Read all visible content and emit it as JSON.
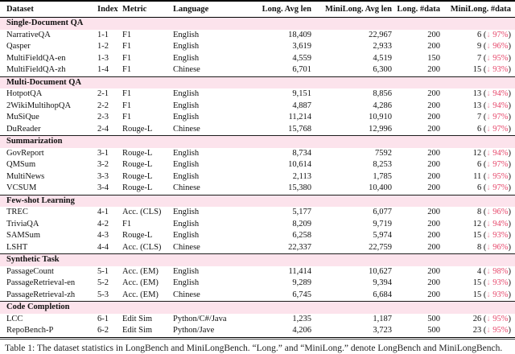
{
  "table": {
    "columns": [
      {
        "label": "Dataset",
        "align": "left"
      },
      {
        "label": "Index",
        "align": "left"
      },
      {
        "label": "Metric",
        "align": "left"
      },
      {
        "label": "Language",
        "align": "left"
      },
      {
        "label": "Long. Avg len",
        "align": "right"
      },
      {
        "label": "MiniLong. Avg len",
        "align": "right"
      },
      {
        "label": "Long. #data",
        "align": "right"
      },
      {
        "label": "MiniLong. #data",
        "align": "right"
      }
    ],
    "sections": [
      {
        "title": "Single-Document QA",
        "rows": [
          {
            "dataset": "NarrativeQA",
            "index": "1-1",
            "metric": "F1",
            "language": "English",
            "long_avg_len": "18,409",
            "minilong_avg_len": "22,967",
            "long_data": "200",
            "minilong_count": "6",
            "minilong_drop": "97%"
          },
          {
            "dataset": "Qasper",
            "index": "1-2",
            "metric": "F1",
            "language": "English",
            "long_avg_len": "3,619",
            "minilong_avg_len": "2,933",
            "long_data": "200",
            "minilong_count": "9",
            "minilong_drop": "96%"
          },
          {
            "dataset": "MultiFieldQA-en",
            "index": "1-3",
            "metric": "F1",
            "language": "English",
            "long_avg_len": "4,559",
            "minilong_avg_len": "4,519",
            "long_data": "150",
            "minilong_count": "7",
            "minilong_drop": "95%"
          },
          {
            "dataset": "MultiFieldQA-zh",
            "index": "1-4",
            "metric": "F1",
            "language": "Chinese",
            "long_avg_len": "6,701",
            "minilong_avg_len": "6,300",
            "long_data": "200",
            "minilong_count": "15",
            "minilong_drop": "93%"
          }
        ]
      },
      {
        "title": "Multi-Document QA",
        "rows": [
          {
            "dataset": "HotpotQA",
            "index": "2-1",
            "metric": "F1",
            "language": "English",
            "long_avg_len": "9,151",
            "minilong_avg_len": "8,856",
            "long_data": "200",
            "minilong_count": "13",
            "minilong_drop": "94%"
          },
          {
            "dataset": "2WikiMultihopQA",
            "index": "2-2",
            "metric": "F1",
            "language": "English",
            "long_avg_len": "4,887",
            "minilong_avg_len": "4,286",
            "long_data": "200",
            "minilong_count": "13",
            "minilong_drop": "94%"
          },
          {
            "dataset": "MuSiQue",
            "index": "2-3",
            "metric": "F1",
            "language": "English",
            "long_avg_len": "11,214",
            "minilong_avg_len": "10,910",
            "long_data": "200",
            "minilong_count": "7",
            "minilong_drop": "97%"
          },
          {
            "dataset": "DuReader",
            "index": "2-4",
            "metric": "Rouge-L",
            "language": "Chinese",
            "long_avg_len": "15,768",
            "minilong_avg_len": "12,996",
            "long_data": "200",
            "minilong_count": "6",
            "minilong_drop": "97%"
          }
        ]
      },
      {
        "title": "Summarization",
        "rows": [
          {
            "dataset": "GovReport",
            "index": "3-1",
            "metric": "Rouge-L",
            "language": "English",
            "long_avg_len": "8,734",
            "minilong_avg_len": "7592",
            "long_data": "200",
            "minilong_count": "12",
            "minilong_drop": "94%"
          },
          {
            "dataset": "QMSum",
            "index": "3-2",
            "metric": "Rouge-L",
            "language": "English",
            "long_avg_len": "10,614",
            "minilong_avg_len": "8,253",
            "long_data": "200",
            "minilong_count": "6",
            "minilong_drop": "97%"
          },
          {
            "dataset": "MultiNews",
            "index": "3-3",
            "metric": "Rouge-L",
            "language": "English",
            "long_avg_len": "2,113",
            "minilong_avg_len": "1,785",
            "long_data": "200",
            "minilong_count": "11",
            "minilong_drop": "95%"
          },
          {
            "dataset": "VCSUM",
            "index": "3-4",
            "metric": "Rouge-L",
            "language": "Chinese",
            "long_avg_len": "15,380",
            "minilong_avg_len": "10,400",
            "long_data": "200",
            "minilong_count": "6",
            "minilong_drop": "97%"
          }
        ]
      },
      {
        "title": "Few-shot Learning",
        "rows": [
          {
            "dataset": "TREC",
            "index": "4-1",
            "metric": "Acc. (CLS)",
            "language": "English",
            "long_avg_len": "5,177",
            "minilong_avg_len": "6,077",
            "long_data": "200",
            "minilong_count": "8",
            "minilong_drop": "96%"
          },
          {
            "dataset": "TriviaQA",
            "index": "4-2",
            "metric": "F1",
            "language": "English",
            "long_avg_len": "8,209",
            "minilong_avg_len": "9,719",
            "long_data": "200",
            "minilong_count": "12",
            "minilong_drop": "94%"
          },
          {
            "dataset": "SAMSum",
            "index": "4-3",
            "metric": "Rouge-L",
            "language": "English",
            "long_avg_len": "6,258",
            "minilong_avg_len": "5,974",
            "long_data": "200",
            "minilong_count": "15",
            "minilong_drop": "93%"
          },
          {
            "dataset": "LSHT",
            "index": "4-4",
            "metric": "Acc. (CLS)",
            "language": "Chinese",
            "long_avg_len": "22,337",
            "minilong_avg_len": "22,759",
            "long_data": "200",
            "minilong_count": "8",
            "minilong_drop": "96%"
          }
        ]
      },
      {
        "title": "Synthetic Task",
        "rows": [
          {
            "dataset": "PassageCount",
            "index": "5-1",
            "metric": "Acc. (EM)",
            "language": "English",
            "long_avg_len": "11,414",
            "minilong_avg_len": "10,627",
            "long_data": "200",
            "minilong_count": "4",
            "minilong_drop": "98%"
          },
          {
            "dataset": "PassageRetrieval-en",
            "index": "5-2",
            "metric": "Acc. (EM)",
            "language": "English",
            "long_avg_len": "9,289",
            "minilong_avg_len": "9,394",
            "long_data": "200",
            "minilong_count": "15",
            "minilong_drop": "93%"
          },
          {
            "dataset": "PassageRetrieval-zh",
            "index": "5-3",
            "metric": "Acc. (EM)",
            "language": "Chinese",
            "long_avg_len": "6,745",
            "minilong_avg_len": "6,684",
            "long_data": "200",
            "minilong_count": "15",
            "minilong_drop": "93%"
          }
        ]
      },
      {
        "title": "Code Completion",
        "rows": [
          {
            "dataset": "LCC",
            "index": "6-1",
            "metric": "Edit Sim",
            "language": "Python/C#/Java",
            "long_avg_len": "1,235",
            "minilong_avg_len": "1,187",
            "long_data": "500",
            "minilong_count": "26",
            "minilong_drop": "95%"
          },
          {
            "dataset": "RepoBench-P",
            "index": "6-2",
            "metric": "Edit Sim",
            "language": "Python/Jave",
            "long_avg_len": "4,206",
            "minilong_avg_len": "3,723",
            "long_data": "500",
            "minilong_count": "23",
            "minilong_drop": "95%"
          }
        ]
      }
    ]
  },
  "icons": {
    "down_arrow": "↓"
  },
  "caption": "Table 1: The dataset statistics in LongBench and MiniLongBench. “Long.” and “MiniLong.” denote LongBench and MiniLongBench.",
  "colors": {
    "section_band_pink": "#fce3ec",
    "drop_red": "#e6466a",
    "drop_arrow_pink": "#f089a2"
  }
}
